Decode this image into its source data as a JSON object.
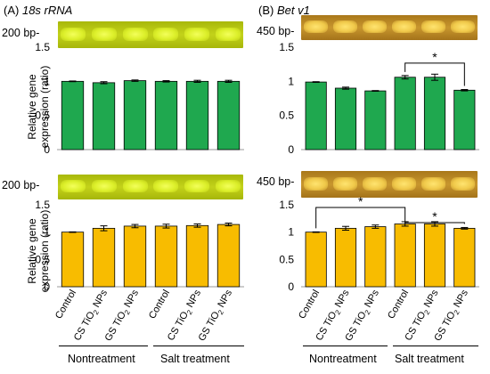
{
  "panel_a": {
    "label": "(A)",
    "gene": "18s rRNA",
    "gel_top_marker": "200 bp-",
    "gel_bottom_marker": "200 bp-",
    "ylabel_line1": "Relative gene",
    "ylabel_line2": "expression (ratio)"
  },
  "panel_b": {
    "label": "(B)",
    "gene": "Bet v1",
    "gel_top_marker": "450 bp-",
    "gel_bottom_marker": "450 bp-"
  },
  "x_groups": [
    "Nontreatment",
    "Salt treatment"
  ],
  "colors": {
    "green": "#1fa84f",
    "orange": "#f8bc00",
    "gel_18s": "#c3d21a",
    "gel_bet": "#c8962e"
  },
  "chart_data": [
    {
      "type": "bar",
      "panel": "A-top",
      "categories": [
        "Control",
        "CS TiO2 NPs",
        "GS TiO2 NPs",
        "Control",
        "CS TiO2 NPs",
        "GS TiO2 NPs"
      ],
      "values": [
        1.0,
        0.98,
        1.01,
        1.0,
        1.0,
        1.0
      ],
      "errors": [
        0.005,
        0.015,
        0.01,
        0.01,
        0.015,
        0.015
      ],
      "yticks": [
        "0",
        "0.5",
        "1",
        "1.5"
      ],
      "ylim": [
        0,
        1.5
      ],
      "color": "#1fa84f",
      "significance": []
    },
    {
      "type": "bar",
      "panel": "B-top",
      "categories": [
        "Control",
        "CS TiO2 NPs",
        "GS TiO2 NPs",
        "Control",
        "CS TiO2 NPs",
        "GS TiO2 NPs"
      ],
      "values": [
        0.99,
        0.9,
        0.86,
        1.06,
        1.06,
        0.87
      ],
      "errors": [
        0.005,
        0.015,
        0.005,
        0.025,
        0.045,
        0.01
      ],
      "yticks": [
        "0",
        "0.5",
        "1",
        "1.5"
      ],
      "ylim": [
        0,
        1.5
      ],
      "color": "#1fa84f",
      "significance": [
        {
          "from": 3,
          "to": 5,
          "label": "*"
        }
      ]
    },
    {
      "type": "bar",
      "panel": "A-bottom",
      "categories": [
        "Control",
        "CS TiO2 NPs",
        "GS TiO2 NPs",
        "Control",
        "CS TiO2 NPs",
        "GS TiO2 NPs"
      ],
      "values": [
        1.0,
        1.07,
        1.11,
        1.11,
        1.12,
        1.14
      ],
      "errors": [
        0.005,
        0.045,
        0.03,
        0.035,
        0.03,
        0.025
      ],
      "yticks": [
        "0",
        "0.5",
        "1",
        "1.5"
      ],
      "ylim": [
        0,
        1.5
      ],
      "color": "#f8bc00",
      "significance": []
    },
    {
      "type": "bar",
      "panel": "B-bottom",
      "categories": [
        "Control",
        "CS TiO2 NPs",
        "GS TiO2 NPs",
        "Control",
        "CS TiO2 NPs",
        "GS TiO2 NPs"
      ],
      "values": [
        1.0,
        1.07,
        1.1,
        1.15,
        1.15,
        1.07
      ],
      "errors": [
        0.005,
        0.035,
        0.03,
        0.04,
        0.04,
        0.015
      ],
      "yticks": [
        "0",
        "0.5",
        "1",
        "1.5"
      ],
      "ylim": [
        0,
        1.5
      ],
      "color": "#f8bc00",
      "significance": [
        {
          "from": 0,
          "to": 3,
          "label": "*"
        },
        {
          "from": 3,
          "to": 5,
          "label": "*"
        }
      ]
    }
  ]
}
